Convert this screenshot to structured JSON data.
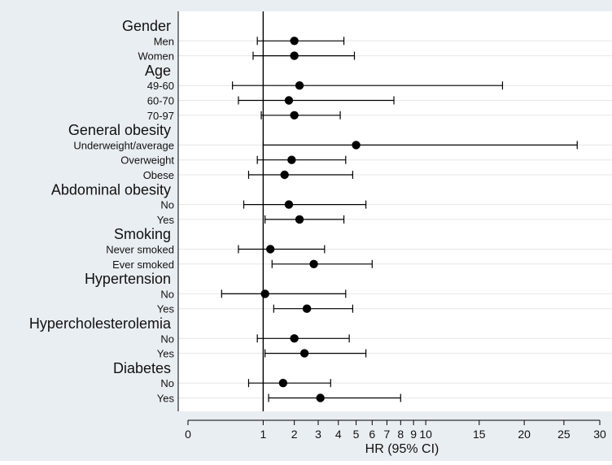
{
  "chart_data": {
    "type": "forest",
    "xlabel": "HR (95% CI)",
    "reference_line": 1,
    "xlim": [
      0,
      30
    ],
    "xticks": [
      0,
      1,
      2,
      3,
      4,
      5,
      6,
      7,
      8,
      9,
      10,
      15,
      20,
      25,
      30
    ],
    "axis_scale": "square-root",
    "grid": true,
    "colors": {
      "outer_background": "#e9eef3",
      "plot_background": "#ffffff",
      "marker": "#000000"
    },
    "groups": [
      {
        "title": "Gender",
        "rows": [
          {
            "label": "Men",
            "hr": 2.0,
            "lo": 0.85,
            "hi": 4.3
          },
          {
            "label": "Women",
            "hr": 2.0,
            "lo": 0.75,
            "hi": 4.9
          }
        ]
      },
      {
        "title": "Age",
        "rows": [
          {
            "label": "49-60",
            "hr": 2.2,
            "lo": 0.35,
            "hi": 17.5
          },
          {
            "label": "60-70",
            "hi": 7.5,
            "hr": 1.8,
            "lo": 0.45
          },
          {
            "label": "70-97",
            "hr": 2.0,
            "lo": 0.95,
            "hi": 4.1
          }
        ]
      },
      {
        "title": "General obesity",
        "rows": [
          {
            "label": "Underweight/average",
            "hr": 5.0,
            "lo": 1.0,
            "hi": 26.8
          },
          {
            "label": "Overweight",
            "hr": 1.9,
            "lo": 0.85,
            "hi": 4.4
          },
          {
            "label": "Obese",
            "hr": 1.65,
            "lo": 0.65,
            "hi": 4.8
          }
        ]
      },
      {
        "title": "Abdominal obesity",
        "rows": [
          {
            "label": "No",
            "hr": 1.8,
            "lo": 0.55,
            "hi": 5.6
          },
          {
            "label": "Yes",
            "hr": 2.2,
            "lo": 1.05,
            "hi": 4.3
          }
        ]
      },
      {
        "title": "Smoking",
        "rows": [
          {
            "label": "Never smoked",
            "hr": 1.2,
            "lo": 0.45,
            "hi": 3.3
          },
          {
            "label": "Ever smoked",
            "hr": 2.8,
            "lo": 1.25,
            "hi": 6.0
          }
        ]
      },
      {
        "title": "Hypertension",
        "rows": [
          {
            "label": "No",
            "hr": 1.05,
            "lo": 0.2,
            "hi": 4.4
          },
          {
            "label": "Yes",
            "hr": 2.5,
            "lo": 1.3,
            "hi": 4.8
          }
        ]
      },
      {
        "title": "Hypercholesterolemia",
        "rows": [
          {
            "label": "No",
            "hr": 2.0,
            "lo": 0.85,
            "hi": 4.6
          },
          {
            "label": "Yes",
            "hr": 2.4,
            "lo": 1.05,
            "hi": 5.6
          }
        ]
      },
      {
        "title": "Diabetes",
        "rows": [
          {
            "label": "No",
            "hr": 1.6,
            "lo": 0.65,
            "hi": 3.6
          },
          {
            "label": "Yes",
            "hr": 3.1,
            "lo": 1.15,
            "hi": 8.0
          }
        ]
      }
    ]
  }
}
